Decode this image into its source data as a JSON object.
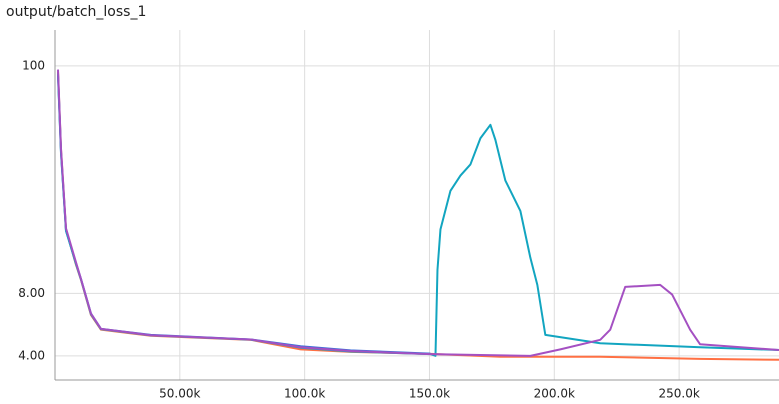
{
  "chart_data": {
    "type": "line",
    "title": "output/batch_loss_1",
    "log_y": true,
    "grid": true,
    "xlim": [
      0,
      290000
    ],
    "ylim": [
      3.06,
      149
    ],
    "xticks": [
      {
        "value": 50000,
        "label": "50.00k"
      },
      {
        "value": 100000,
        "label": "100.0k"
      },
      {
        "value": 150000,
        "label": "150.0k"
      },
      {
        "value": 200000,
        "label": "200.0k"
      },
      {
        "value": 250000,
        "label": "250.0k"
      }
    ],
    "yticks": [
      {
        "value": 4,
        "label": "4.00"
      },
      {
        "value": 8,
        "label": "8.00"
      },
      100
    ],
    "series": [
      {
        "color": "#ff7043",
        "x": [
          1200,
          2400,
          4400,
          8400,
          10400,
          14400,
          18400,
          38400,
          78400,
          98400,
          118400,
          150400,
          178400,
          218400,
          258400,
          290000
        ],
        "values": [
          94,
          39.6,
          16.3,
          11,
          9.3,
          6.3,
          5.35,
          5.0,
          4.78,
          4.3,
          4.18,
          4.09,
          3.96,
          3.96,
          3.87,
          3.83
        ]
      },
      {
        "color": "#3f6fd8",
        "x": [
          1200,
          2400,
          4400,
          8400,
          10400,
          14400,
          18400,
          38400,
          78400,
          98400,
          118400,
          150400
        ],
        "values": [
          90,
          38,
          16,
          11.2,
          9.4,
          6.4,
          5.4,
          5.05,
          4.8,
          4.45,
          4.25,
          4.1
        ]
      },
      {
        "color": "#12a5c0",
        "x": [
          1200,
          2400,
          4400,
          8400,
          10400,
          14400,
          18400,
          38400,
          78400,
          98400,
          118400,
          150400,
          152400,
          153200,
          154400,
          158400,
          162400,
          166400,
          170400,
          174400,
          176400,
          180400,
          186400,
          190400,
          193200,
          196400,
          218400,
          258400,
          290000
        ],
        "values": [
          92,
          38.5,
          16.1,
          11.1,
          9.35,
          6.35,
          5.38,
          5.02,
          4.79,
          4.38,
          4.2,
          4.08,
          4.0,
          10.4,
          16.3,
          25,
          29.6,
          33.5,
          44.8,
          52,
          44,
          28,
          20,
          11.9,
          8.8,
          5.05,
          4.6,
          4.4,
          4.27
        ]
      },
      {
        "color": "#a450c2",
        "x": [
          1200,
          2400,
          4400,
          8400,
          10400,
          14400,
          18400,
          38400,
          78400,
          98400,
          118400,
          150400,
          190400,
          202400,
          218400,
          222400,
          228400,
          242400,
          247200,
          254400,
          258400,
          290000
        ],
        "values": [
          96,
          40,
          16.5,
          11.3,
          9.4,
          6.4,
          5.4,
          5.03,
          4.8,
          4.4,
          4.22,
          4.08,
          4.0,
          4.3,
          4.78,
          5.35,
          8.6,
          8.8,
          7.9,
          5.35,
          4.55,
          4.27
        ]
      }
    ]
  }
}
